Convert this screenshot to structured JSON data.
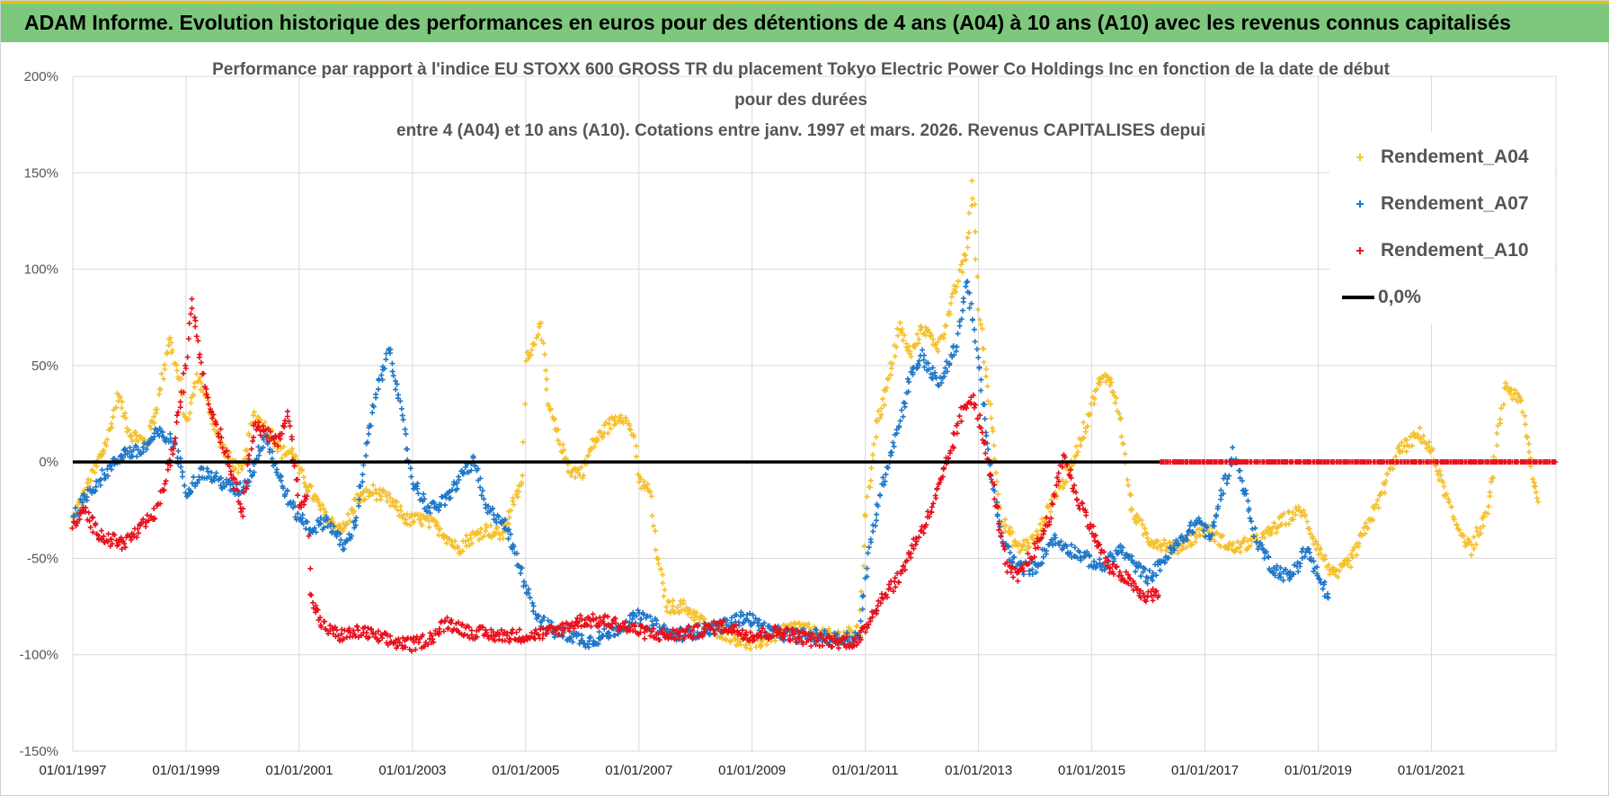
{
  "banner": {
    "title": "ADAM Informe. Evolution historique des performances en euros pour des détentions de 4 ans (A04) à 10 ans (A10) avec les revenus connus capitalisés"
  },
  "colors": {
    "banner_bg": "#7dc87d",
    "banner_border": "#e6c400",
    "a04": "#f5c02c",
    "a07": "#1f77c8",
    "a10": "#e8101c",
    "zero": "#000000",
    "grid": "#d9d9d9"
  },
  "chart_data": {
    "type": "scatter",
    "title_lines": [
      "Performance par rapport à l'indice EU STOXX 600 GROSS TR  du placement Tokyo Electric Power Co Holdings Inc en fonction de la date de début",
      "pour des durées",
      "entre 4 (A04) et 10 ans (A10). Cotations entre janv. 1997 et mars. 2026. Revenus CAPITALISES depui"
    ],
    "y_ticks": [
      "200%",
      "150%",
      "100%",
      "50%",
      "0%",
      "-50%",
      "-100%",
      "-150%"
    ],
    "y_tick_values": [
      200,
      150,
      100,
      50,
      0,
      -50,
      -100,
      -150
    ],
    "ylim": [
      -150,
      200
    ],
    "x_ticks": [
      "01/01/1997",
      "01/01/1999",
      "01/01/2001",
      "01/01/2003",
      "01/01/2005",
      "01/01/2007",
      "01/01/2009",
      "01/01/2011",
      "01/01/2013",
      "01/01/2015",
      "01/01/2017",
      "01/01/2019",
      "01/01/2021"
    ],
    "x_tick_values": [
      1997,
      1999,
      2001,
      2003,
      2005,
      2007,
      2009,
      2011,
      2013,
      2015,
      2017,
      2019,
      2021
    ],
    "xlim": [
      1997,
      2023.2
    ],
    "legend": [
      {
        "label": "Rendement_A04",
        "key": "a04",
        "marker": "plus"
      },
      {
        "label": "Rendement_A07",
        "key": "a07",
        "marker": "plus"
      },
      {
        "label": "Rendement_A10",
        "key": "a10",
        "marker": "plus"
      },
      {
        "label": "0,0%",
        "key": "zero",
        "marker": "line"
      }
    ],
    "series": [
      {
        "name": "Rendement_A04",
        "key": "a04",
        "points": [
          [
            1997.0,
            -30
          ],
          [
            1997.3,
            -10
          ],
          [
            1997.6,
            10
          ],
          [
            1997.8,
            35
          ],
          [
            1998.0,
            15
          ],
          [
            1998.3,
            10
          ],
          [
            1998.5,
            30
          ],
          [
            1998.7,
            65
          ],
          [
            1998.9,
            40
          ],
          [
            1999.0,
            20
          ],
          [
            1999.2,
            45
          ],
          [
            1999.4,
            30
          ],
          [
            1999.6,
            10
          ],
          [
            1999.8,
            0
          ],
          [
            2000.0,
            -5
          ],
          [
            2000.2,
            25
          ],
          [
            2000.5,
            15
          ],
          [
            2000.7,
            5
          ],
          [
            2000.9,
            5
          ],
          [
            2001.0,
            -5
          ],
          [
            2001.2,
            -15
          ],
          [
            2001.5,
            -30
          ],
          [
            2001.8,
            -35
          ],
          [
            2002.0,
            -20
          ],
          [
            2002.3,
            -15
          ],
          [
            2002.6,
            -20
          ],
          [
            2002.9,
            -30
          ],
          [
            2003.2,
            -30
          ],
          [
            2003.5,
            -35
          ],
          [
            2003.8,
            -45
          ],
          [
            2004.0,
            -40
          ],
          [
            2004.3,
            -35
          ],
          [
            2004.6,
            -38
          ],
          [
            2004.8,
            -20
          ],
          [
            2004.95,
            -10
          ],
          [
            2005.0,
            55
          ],
          [
            2005.15,
            60
          ],
          [
            2005.25,
            75
          ],
          [
            2005.4,
            30
          ],
          [
            2005.6,
            10
          ],
          [
            2005.8,
            -5
          ],
          [
            2006.0,
            -5
          ],
          [
            2006.2,
            10
          ],
          [
            2006.5,
            20
          ],
          [
            2006.7,
            25
          ],
          [
            2006.9,
            15
          ],
          [
            2007.0,
            -10
          ],
          [
            2007.2,
            -15
          ],
          [
            2007.3,
            -45
          ],
          [
            2007.5,
            -75
          ],
          [
            2007.8,
            -75
          ],
          [
            2008.2,
            -85
          ],
          [
            2008.6,
            -90
          ],
          [
            2009.0,
            -95
          ],
          [
            2009.4,
            -90
          ],
          [
            2009.8,
            -85
          ],
          [
            2010.2,
            -90
          ],
          [
            2010.6,
            -90
          ],
          [
            2010.9,
            -88
          ],
          [
            2011.0,
            -30
          ],
          [
            2011.2,
            20
          ],
          [
            2011.4,
            40
          ],
          [
            2011.6,
            70
          ],
          [
            2011.8,
            55
          ],
          [
            2012.0,
            70
          ],
          [
            2012.3,
            60
          ],
          [
            2012.6,
            90
          ],
          [
            2012.8,
            110
          ],
          [
            2012.9,
            145
          ],
          [
            2013.0,
            80
          ],
          [
            2013.2,
            30
          ],
          [
            2013.4,
            -30
          ],
          [
            2013.7,
            -45
          ],
          [
            2014.0,
            -40
          ],
          [
            2014.3,
            -20
          ],
          [
            2014.6,
            -5
          ],
          [
            2014.9,
            20
          ],
          [
            2015.1,
            40
          ],
          [
            2015.3,
            45
          ],
          [
            2015.5,
            25
          ],
          [
            2015.7,
            -25
          ],
          [
            2016.0,
            -40
          ],
          [
            2016.5,
            -45
          ],
          [
            2017.0,
            -35
          ],
          [
            2017.5,
            -45
          ],
          [
            2018.0,
            -40
          ],
          [
            2018.4,
            -30
          ],
          [
            2018.7,
            -25
          ],
          [
            2019.0,
            -45
          ],
          [
            2019.3,
            -60
          ],
          [
            2019.6,
            -50
          ],
          [
            2020.0,
            -25
          ],
          [
            2020.4,
            5
          ],
          [
            2020.8,
            15
          ],
          [
            2021.0,
            5
          ],
          [
            2021.4,
            -30
          ],
          [
            2021.7,
            -45
          ],
          [
            2022.0,
            -25
          ],
          [
            2022.3,
            40
          ],
          [
            2022.6,
            30
          ],
          [
            2022.8,
            -10
          ],
          [
            2022.9,
            -20
          ]
        ]
      },
      {
        "name": "Rendement_A07",
        "key": "a07",
        "points": [
          [
            1997.0,
            -30
          ],
          [
            1997.3,
            -15
          ],
          [
            1997.6,
            -5
          ],
          [
            1997.9,
            5
          ],
          [
            1998.2,
            5
          ],
          [
            1998.5,
            15
          ],
          [
            1998.8,
            10
          ],
          [
            1999.0,
            -15
          ],
          [
            1999.3,
            -5
          ],
          [
            1999.6,
            -10
          ],
          [
            1999.9,
            -15
          ],
          [
            2000.1,
            -10
          ],
          [
            2000.4,
            15
          ],
          [
            2000.6,
            -5
          ],
          [
            2000.9,
            -25
          ],
          [
            2001.2,
            -35
          ],
          [
            2001.5,
            -30
          ],
          [
            2001.8,
            -45
          ],
          [
            2002.0,
            -30
          ],
          [
            2002.2,
            10
          ],
          [
            2002.4,
            40
          ],
          [
            2002.6,
            60
          ],
          [
            2002.8,
            25
          ],
          [
            2003.0,
            -10
          ],
          [
            2003.3,
            -25
          ],
          [
            2003.6,
            -20
          ],
          [
            2003.9,
            -5
          ],
          [
            2004.1,
            0
          ],
          [
            2004.3,
            -25
          ],
          [
            2004.6,
            -30
          ],
          [
            2004.9,
            -55
          ],
          [
            2005.2,
            -80
          ],
          [
            2005.5,
            -88
          ],
          [
            2005.8,
            -90
          ],
          [
            2006.1,
            -93
          ],
          [
            2006.4,
            -90
          ],
          [
            2006.7,
            -85
          ],
          [
            2007.0,
            -80
          ],
          [
            2007.3,
            -85
          ],
          [
            2007.6,
            -90
          ],
          [
            2008.0,
            -88
          ],
          [
            2008.5,
            -85
          ],
          [
            2008.9,
            -80
          ],
          [
            2009.3,
            -88
          ],
          [
            2009.7,
            -90
          ],
          [
            2010.1,
            -90
          ],
          [
            2010.5,
            -92
          ],
          [
            2010.9,
            -90
          ],
          [
            2011.0,
            -60
          ],
          [
            2011.2,
            -25
          ],
          [
            2011.4,
            0
          ],
          [
            2011.6,
            20
          ],
          [
            2011.8,
            45
          ],
          [
            2012.0,
            55
          ],
          [
            2012.3,
            40
          ],
          [
            2012.6,
            60
          ],
          [
            2012.8,
            95
          ],
          [
            2013.0,
            50
          ],
          [
            2013.2,
            0
          ],
          [
            2013.4,
            -40
          ],
          [
            2013.7,
            -55
          ],
          [
            2014.0,
            -55
          ],
          [
            2014.3,
            -40
          ],
          [
            2014.6,
            -45
          ],
          [
            2014.9,
            -50
          ],
          [
            2015.2,
            -55
          ],
          [
            2015.5,
            -45
          ],
          [
            2015.8,
            -55
          ],
          [
            2016.0,
            -60
          ],
          [
            2016.3,
            -50
          ],
          [
            2016.6,
            -40
          ],
          [
            2016.9,
            -30
          ],
          [
            2017.1,
            -40
          ],
          [
            2017.3,
            -15
          ],
          [
            2017.5,
            5
          ],
          [
            2017.7,
            -15
          ],
          [
            2017.9,
            -40
          ],
          [
            2018.2,
            -55
          ],
          [
            2018.5,
            -60
          ],
          [
            2018.8,
            -45
          ],
          [
            2019.0,
            -60
          ],
          [
            2019.2,
            -70
          ]
        ]
      },
      {
        "name": "Rendement_A10",
        "key": "a10",
        "points": [
          [
            1997.0,
            -35
          ],
          [
            1997.2,
            -25
          ],
          [
            1997.4,
            -35
          ],
          [
            1997.6,
            -40
          ],
          [
            1997.9,
            -42
          ],
          [
            1998.2,
            -35
          ],
          [
            1998.5,
            -25
          ],
          [
            1998.8,
            10
          ],
          [
            1999.0,
            50
          ],
          [
            1999.1,
            85
          ],
          [
            1999.25,
            55
          ],
          [
            1999.4,
            30
          ],
          [
            1999.6,
            15
          ],
          [
            1999.8,
            -5
          ],
          [
            2000.0,
            -25
          ],
          [
            2000.2,
            20
          ],
          [
            2000.4,
            15
          ],
          [
            2000.6,
            10
          ],
          [
            2000.8,
            25
          ],
          [
            2001.0,
            -20
          ],
          [
            2001.15,
            -20
          ],
          [
            2001.2,
            -70
          ],
          [
            2001.4,
            -85
          ],
          [
            2001.7,
            -90
          ],
          [
            2002.1,
            -88
          ],
          [
            2002.6,
            -93
          ],
          [
            2003.0,
            -95
          ],
          [
            2003.4,
            -90
          ],
          [
            2003.6,
            -83
          ],
          [
            2004.0,
            -88
          ],
          [
            2004.5,
            -90
          ],
          [
            2005.0,
            -90
          ],
          [
            2005.5,
            -88
          ],
          [
            2006.0,
            -82
          ],
          [
            2006.5,
            -83
          ],
          [
            2007.0,
            -88
          ],
          [
            2007.5,
            -90
          ],
          [
            2008.0,
            -88
          ],
          [
            2008.5,
            -85
          ],
          [
            2009.0,
            -90
          ],
          [
            2009.5,
            -88
          ],
          [
            2010.0,
            -92
          ],
          [
            2010.5,
            -93
          ],
          [
            2010.9,
            -93
          ],
          [
            2011.1,
            -80
          ],
          [
            2011.3,
            -70
          ],
          [
            2011.6,
            -60
          ],
          [
            2011.9,
            -40
          ],
          [
            2012.1,
            -30
          ],
          [
            2012.4,
            -5
          ],
          [
            2012.7,
            25
          ],
          [
            2012.9,
            35
          ],
          [
            2013.1,
            10
          ],
          [
            2013.3,
            -20
          ],
          [
            2013.5,
            -55
          ],
          [
            2013.7,
            -60
          ],
          [
            2013.9,
            -50
          ],
          [
            2014.1,
            -40
          ],
          [
            2014.3,
            -25
          ],
          [
            2014.5,
            5
          ],
          [
            2014.7,
            -15
          ],
          [
            2015.0,
            -35
          ],
          [
            2015.3,
            -55
          ],
          [
            2015.6,
            -60
          ],
          [
            2015.9,
            -70
          ],
          [
            2016.2,
            -68
          ]
        ]
      },
      {
        "name": "Rendement_A10 (0,0%)",
        "key": "a10",
        "points": [
          [
            2016.2,
            0
          ],
          [
            2023.2,
            0
          ]
        ]
      }
    ]
  }
}
